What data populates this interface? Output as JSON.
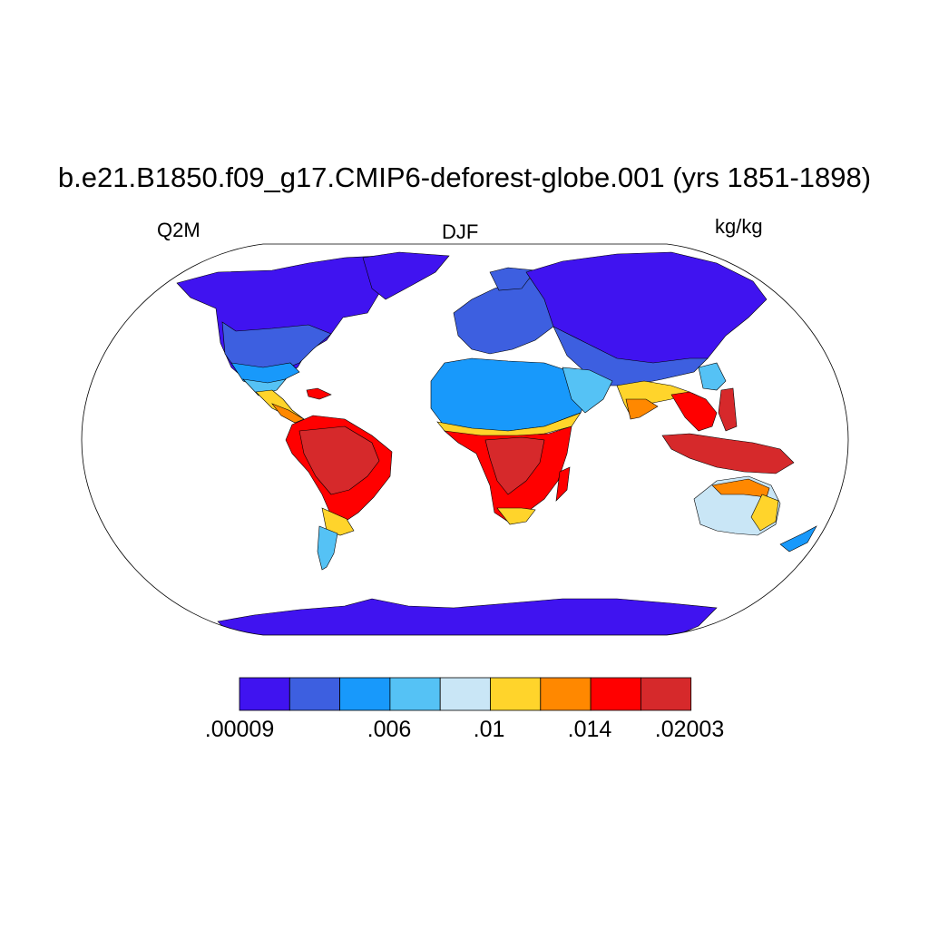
{
  "title": "b.e21.B1850.f09_g17.CMIP6-deforest-globe.001 (yrs 1851-1898)",
  "left_label": "Q2M",
  "center_label": "DJF",
  "right_label": "kg/kg",
  "colorbar": {
    "colors": [
      "#4013f0",
      "#3d5fe0",
      "#1899fb",
      "#55c2f5",
      "#c9e6f6",
      "#ffd42b",
      "#ff8800",
      "#ff0000",
      "#d6292b"
    ],
    "tick_labels": [
      ".00009",
      ".006",
      ".01",
      ".014",
      ".02003"
    ]
  }
}
